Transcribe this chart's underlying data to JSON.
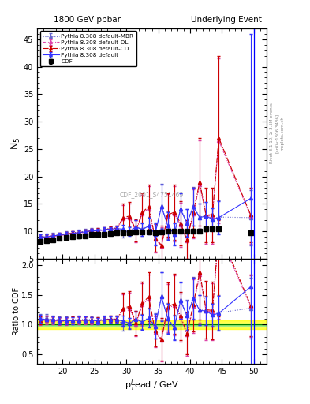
{
  "title_left": "1800 GeV ppbar",
  "title_right": "Underlying Event",
  "xlabel": "p$_T^l$ead / GeV",
  "ylabel_main": "N$_5$",
  "ylabel_ratio": "Ratio to CDF",
  "right_label": "Rivet 3.1.10, ≥ 3.5M events",
  "right_label2": "[arXiv:1306.3436]",
  "right_label3": "mcplots.cern.ch",
  "watermark": "CDF_2001_S4751469",
  "xlim": [
    16,
    52
  ],
  "ylim_main": [
    5,
    47
  ],
  "ylim_ratio": [
    0.35,
    2.1
  ],
  "yticks_main": [
    5,
    10,
    15,
    20,
    25,
    30,
    35,
    40,
    45
  ],
  "yticks_ratio": [
    0.5,
    1.0,
    1.5,
    2.0
  ],
  "vline_x1": 45.0,
  "vline_x2": 50.0,
  "cdf_x": [
    16.5,
    17.5,
    18.5,
    19.5,
    20.5,
    21.5,
    22.5,
    23.5,
    24.5,
    25.5,
    26.5,
    27.5,
    28.5,
    29.5,
    30.5,
    31.5,
    32.5,
    33.5,
    34.5,
    35.5,
    36.5,
    37.5,
    38.5,
    39.5,
    40.5,
    41.5,
    42.5,
    43.5,
    44.5,
    49.5
  ],
  "cdf_y": [
    8.2,
    8.3,
    8.5,
    8.7,
    8.9,
    9.0,
    9.1,
    9.2,
    9.4,
    9.5,
    9.5,
    9.6,
    9.7,
    9.8,
    9.8,
    9.9,
    9.9,
    9.9,
    9.8,
    9.9,
    10.0,
    10.0,
    10.0,
    10.0,
    10.1,
    10.1,
    10.4,
    10.5,
    10.5,
    9.8
  ],
  "cdf_yerr": [
    0.3,
    0.3,
    0.3,
    0.3,
    0.3,
    0.3,
    0.3,
    0.3,
    0.3,
    0.3,
    0.3,
    0.3,
    0.3,
    0.3,
    0.3,
    0.3,
    0.3,
    0.3,
    0.3,
    0.3,
    0.3,
    0.3,
    0.3,
    0.3,
    0.3,
    0.3,
    0.3,
    0.3,
    0.3,
    0.4
  ],
  "py_default_x": [
    16.5,
    17.5,
    18.5,
    19.5,
    20.5,
    21.5,
    22.5,
    23.5,
    24.5,
    25.5,
    26.5,
    27.5,
    28.5,
    29.5,
    30.5,
    31.5,
    32.5,
    33.5,
    34.5,
    35.5,
    36.5,
    37.5,
    38.5,
    39.5,
    40.5,
    41.5,
    42.5,
    43.5,
    44.5,
    49.5
  ],
  "py_default_y": [
    9.0,
    9.0,
    9.2,
    9.3,
    9.5,
    9.6,
    9.8,
    9.9,
    10.1,
    10.1,
    10.3,
    10.4,
    10.5,
    10.4,
    10.0,
    10.8,
    10.3,
    11.0,
    9.5,
    14.5,
    11.0,
    9.5,
    14.0,
    11.5,
    14.5,
    12.5,
    12.8,
    12.2,
    12.5,
    16.0
  ],
  "py_default_yerr": [
    0.4,
    0.4,
    0.4,
    0.4,
    0.4,
    0.4,
    0.4,
    0.4,
    0.4,
    0.4,
    0.4,
    0.4,
    0.4,
    0.8,
    0.8,
    1.2,
    1.2,
    1.5,
    2.0,
    4.0,
    2.5,
    2.0,
    3.0,
    2.5,
    3.5,
    2.5,
    2.5,
    2.0,
    3.0,
    30.0
  ],
  "py_cd_x": [
    16.5,
    17.5,
    18.5,
    19.5,
    20.5,
    21.5,
    22.5,
    23.5,
    24.5,
    25.5,
    26.5,
    27.5,
    28.5,
    29.5,
    30.5,
    31.5,
    32.5,
    33.5,
    34.5,
    35.5,
    36.5,
    37.5,
    38.5,
    39.5,
    40.5,
    41.5,
    42.5,
    43.5,
    44.5,
    49.5
  ],
  "py_cd_y": [
    8.8,
    9.0,
    9.2,
    9.3,
    9.5,
    9.7,
    9.8,
    9.9,
    10.1,
    10.2,
    10.3,
    10.5,
    10.6,
    12.5,
    12.8,
    10.2,
    13.5,
    14.5,
    8.8,
    7.5,
    13.0,
    13.5,
    11.5,
    8.5,
    13.5,
    19.0,
    13.0,
    13.0,
    27.0,
    13.0
  ],
  "py_cd_yerr": [
    0.4,
    0.4,
    0.4,
    0.4,
    0.4,
    0.4,
    0.4,
    0.4,
    0.4,
    0.4,
    0.4,
    0.4,
    0.4,
    2.5,
    2.5,
    2.0,
    3.5,
    4.0,
    2.5,
    3.5,
    4.0,
    5.0,
    4.0,
    3.5,
    4.5,
    8.0,
    5.0,
    5.0,
    15.0,
    5.0
  ],
  "py_dl_x": [
    16.5,
    17.5,
    18.5,
    19.5,
    20.5,
    21.5,
    22.5,
    23.5,
    24.5,
    25.5,
    26.5,
    27.5,
    28.5,
    29.5,
    30.5,
    31.5,
    32.5,
    33.5,
    34.5,
    35.5,
    36.5,
    37.5,
    38.5,
    39.5,
    40.5,
    41.5,
    42.5,
    43.5,
    44.5,
    49.5
  ],
  "py_dl_y": [
    8.7,
    8.9,
    9.1,
    9.2,
    9.4,
    9.6,
    9.7,
    9.8,
    10.0,
    10.1,
    10.2,
    10.4,
    10.5,
    12.3,
    12.5,
    10.0,
    13.2,
    14.2,
    8.6,
    7.3,
    12.8,
    13.2,
    11.2,
    8.3,
    13.2,
    18.5,
    12.8,
    12.8,
    26.5,
    12.8
  ],
  "py_dl_yerr": [
    0.4,
    0.4,
    0.4,
    0.4,
    0.4,
    0.4,
    0.4,
    0.4,
    0.4,
    0.4,
    0.4,
    0.4,
    0.4,
    2.5,
    2.5,
    2.0,
    3.5,
    4.0,
    2.5,
    3.5,
    4.0,
    5.0,
    4.0,
    3.5,
    4.5,
    8.0,
    5.0,
    5.0,
    15.0,
    5.0
  ],
  "py_mbr_x": [
    16.5,
    17.5,
    18.5,
    19.5,
    20.5,
    21.5,
    22.5,
    23.5,
    24.5,
    25.5,
    26.5,
    27.5,
    28.5,
    29.5,
    30.5,
    31.5,
    32.5,
    33.5,
    34.5,
    35.5,
    36.5,
    37.5,
    38.5,
    39.5,
    40.5,
    41.5,
    42.5,
    43.5,
    44.5,
    49.5
  ],
  "py_mbr_y": [
    9.1,
    9.2,
    9.3,
    9.4,
    9.6,
    9.7,
    9.9,
    10.0,
    10.2,
    10.2,
    10.4,
    10.5,
    10.6,
    9.7,
    10.1,
    10.9,
    10.4,
    11.1,
    9.6,
    14.6,
    11.1,
    9.6,
    14.1,
    11.6,
    14.6,
    12.6,
    12.9,
    12.3,
    12.6,
    12.5
  ],
  "py_mbr_yerr": [
    0.4,
    0.4,
    0.4,
    0.4,
    0.4,
    0.4,
    0.4,
    0.4,
    0.4,
    0.4,
    0.4,
    0.4,
    0.4,
    0.8,
    0.8,
    1.2,
    1.2,
    1.5,
    2.0,
    4.0,
    2.5,
    2.0,
    3.0,
    2.5,
    3.5,
    2.5,
    2.5,
    2.0,
    3.0,
    5.0
  ],
  "color_cdf": "#000000",
  "color_default": "#3333ff",
  "color_cd": "#cc0000",
  "color_dl": "#dd44aa",
  "color_mbr": "#6666cc",
  "yellow_band": 0.07,
  "green_band": 0.02,
  "bg_color": "#ffffff"
}
